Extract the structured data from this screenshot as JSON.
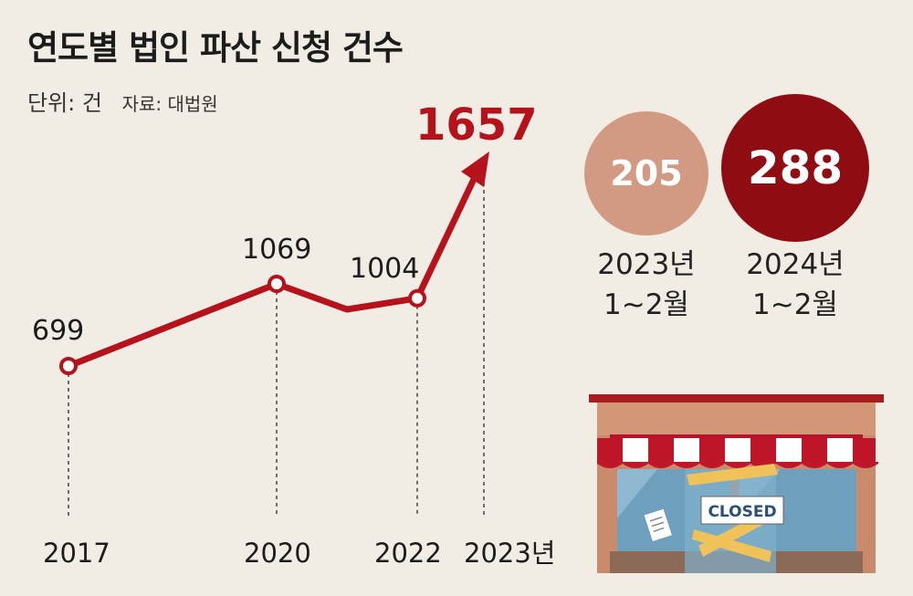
{
  "title": "연도별 법인 파산 신청 건수",
  "unit": "단위: 건",
  "source": "자료: 대법원",
  "chart_data": {
    "type": "line",
    "x": [
      "2017",
      "2020",
      "2022",
      "2023년"
    ],
    "y": [
      699,
      1069,
      1004,
      1657
    ],
    "labels": [
      "699",
      "1069",
      "1004",
      "1657"
    ],
    "highlight_color": "#b5121b"
  },
  "comparison": [
    {
      "value": "205",
      "line1": "2023년",
      "line2": "1∼2월",
      "color": "#d29a82"
    },
    {
      "value": "288",
      "line1": "2024년",
      "line2": "1∼2월",
      "color": "#8e0c12"
    }
  ],
  "illustration": {
    "sign_text": "CLOSED"
  }
}
